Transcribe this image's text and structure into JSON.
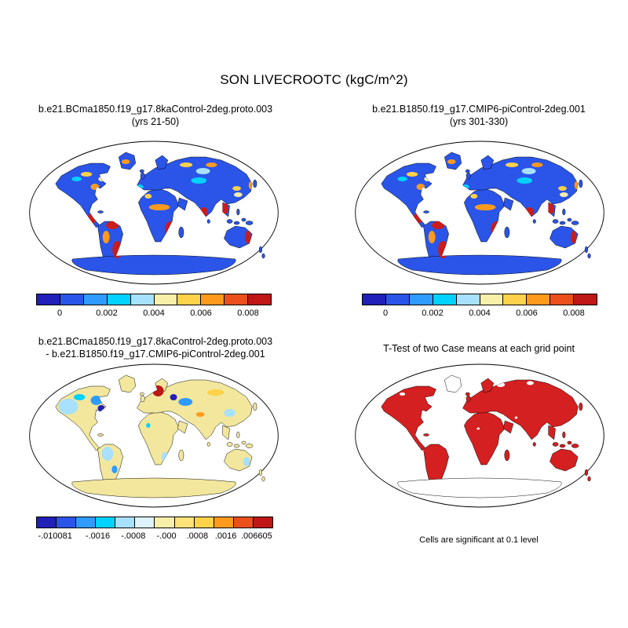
{
  "page_title": "SON LIVECROOTC (kgC/m^2)",
  "panels": {
    "top_left": {
      "title_line1": "b.e21.BCma1850.f19_g17.8kaControl-2deg.proto.003",
      "title_line2": "(yrs 21-50)"
    },
    "top_right": {
      "title_line1": "b.e21.B1850.f19_g17.CMIP6-piControl-2deg.001",
      "title_line2": "(yrs 301-330)"
    },
    "bottom_left": {
      "title_line1": "b.e21.BCma1850.f19_g17.8kaControl-2deg.proto.003",
      "title_line2": "- b.e21.B1850.f19_g17.CMIP6-piControl-2deg.001"
    },
    "bottom_right": {
      "title": "T-Test of two Case means at each grid point",
      "caption": "Cells are significant at 0.1 level"
    }
  },
  "colorbars": {
    "value": {
      "labels": [
        "0",
        "0.002",
        "0.004",
        "0.006",
        "0.008"
      ],
      "colors": [
        "#2020b8",
        "#2a55e8",
        "#2f9bff",
        "#00d2ff",
        "#a8e0ff",
        "#f8efa8",
        "#ffd24a",
        "#ff9a1e",
        "#ea4f1c",
        "#bf1616"
      ]
    },
    "diff": {
      "labels": [
        "-.010081",
        "-.0016",
        "-.0008",
        "-.000",
        ".0008",
        ".0016",
        ".006605"
      ],
      "colors": [
        "#2020b8",
        "#2a55e8",
        "#2f9bff",
        "#00d2ff",
        "#a8e0ff",
        "#ddf4ff",
        "#f8efa8",
        "#ffe27a",
        "#ffd24a",
        "#ff9a1e",
        "#ea4f1c",
        "#bf1616"
      ]
    }
  },
  "map_colors": {
    "value_land": "#2a55e8",
    "diff_land": "#f2e79c",
    "ttest_significant": "#d42020",
    "ocean": "#ffffff",
    "outline": "#000000"
  },
  "chart_data": [
    {
      "type": "heatmap",
      "subtype": "global map (Robinson-style projection)",
      "panel": "top-left",
      "title": "b.e21.BCma1850.f19_g17.8kaControl-2deg.proto.003 (yrs 21-50)",
      "variable": "LIVECROOTC",
      "season": "SON",
      "units": "kgC/m^2",
      "colorbar_ticks": [
        0,
        0.002,
        0.004,
        0.006,
        0.008
      ],
      "colorbar_colors": [
        "#2020b8",
        "#2a55e8",
        "#2f9bff",
        "#00d2ff",
        "#a8e0ff",
        "#f8efa8",
        "#ffd24a",
        "#ff9a1e",
        "#ea4f1c",
        "#bf1616"
      ],
      "summary": "Most vegetated land in lowest bin (blue, ~0-0.002); high values (orange/red, up to >0.008) over Central America, northern and southeastern South America, southern/eastern Africa, India, Southeast Asia and eastern Australia; scattered yellow/orange along Arctic coasts; oceans blank."
    },
    {
      "type": "heatmap",
      "subtype": "global map (Robinson-style projection)",
      "panel": "top-right",
      "title": "b.e21.B1850.f19_g17.CMIP6-piControl-2deg.001 (yrs 301-330)",
      "variable": "LIVECROOTC",
      "season": "SON",
      "units": "kgC/m^2",
      "colorbar_ticks": [
        0,
        0.002,
        0.004,
        0.006,
        0.008
      ],
      "colorbar_colors": [
        "#2020b8",
        "#2a55e8",
        "#2f9bff",
        "#00d2ff",
        "#a8e0ff",
        "#f8efa8",
        "#ffd24a",
        "#ff9a1e",
        "#ea4f1c",
        "#bf1616"
      ],
      "summary": "Spatial pattern nearly identical to the top-left case: blue over most land with tropical/subtropical red hotspots."
    },
    {
      "type": "heatmap",
      "subtype": "global difference map",
      "panel": "bottom-left",
      "title": "b.e21.BCma1850.f19_g17.8kaControl-2deg.proto.003 - b.e21.B1850.f19_g17.CMIP6-piControl-2deg.001",
      "units": "kgC/m^2",
      "colorbar_ticks": [
        "-.010081",
        "-.0016",
        "-.0008",
        "-.000",
        ".0008",
        ".0016",
        ".006605"
      ],
      "min": -0.010081,
      "max": 0.006605,
      "colorbar_colors": [
        "#2020b8",
        "#2a55e8",
        "#2f9bff",
        "#00d2ff",
        "#a8e0ff",
        "#ddf4ff",
        "#f8efa8",
        "#ffe27a",
        "#ffd24a",
        "#ff9a1e",
        "#ea4f1c",
        "#bf1616"
      ],
      "summary": "Differences mostly small and positive (pale yellow) including Antarctica; light-blue/blue negative patches over western and northeastern North America, western Amazon and central Eurasia; a strong dark-red positive patch over northern Europe."
    },
    {
      "type": "map",
      "subtype": "significance mask",
      "panel": "bottom-right",
      "title": "T-Test of two Case means at each grid point",
      "note": "Cells are significant at 0.1 level",
      "significant_color": "#d42020",
      "summary": "Nearly all vegetated land grid cells shaded solid red (significant at the 0.1 level); Antarctica and Greenland largely unshaded outlines; oceans blank."
    }
  ]
}
